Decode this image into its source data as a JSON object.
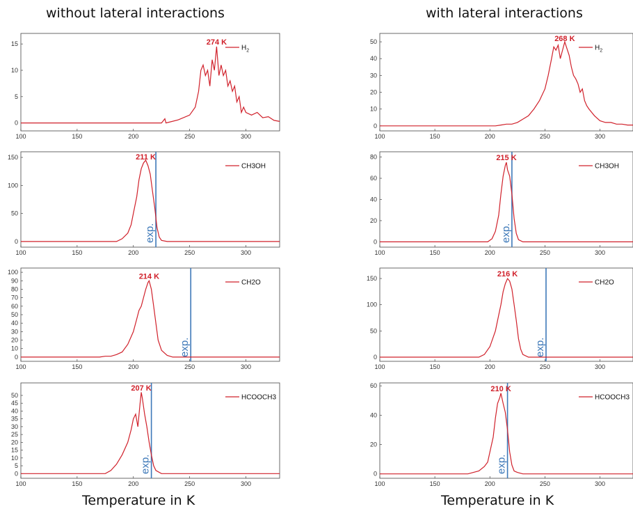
{
  "figure": {
    "left_title": "without lateral interactions",
    "right_title": "with lateral interactions",
    "x_title": "Temperature in K"
  },
  "colors": {
    "series": "#d0202a",
    "exp": "#3d78b8",
    "axis": "#444444"
  },
  "chart_data": [
    {
      "type": "line",
      "id": "wo-h2",
      "legend": "H",
      "legend_sub": "2",
      "peak_label": "274 K",
      "xlim": [
        100,
        330
      ],
      "ylim": [
        -1.5,
        17
      ],
      "xticks": [
        100,
        150,
        200,
        250,
        300
      ],
      "yticks": [
        0,
        5,
        10,
        15
      ],
      "exp_line": null,
      "exp_label": "",
      "x": [
        100,
        225,
        228,
        229,
        240,
        250,
        255,
        258,
        260,
        262,
        264,
        266,
        268,
        270,
        272,
        274,
        276,
        278,
        280,
        282,
        284,
        286,
        288,
        290,
        292,
        294,
        296,
        298,
        300,
        305,
        310,
        315,
        320,
        325,
        330
      ],
      "y": [
        0,
        0,
        0.8,
        0,
        0.6,
        1.5,
        3,
        6,
        10,
        11,
        9,
        10,
        7,
        12,
        10,
        14.5,
        9,
        11,
        9,
        10,
        7,
        8,
        6,
        7,
        4,
        5,
        2,
        3,
        2,
        1.5,
        2,
        1,
        1.2,
        0.5,
        0.3
      ]
    },
    {
      "type": "line",
      "id": "wo-ch3oh",
      "legend": "CH3OH",
      "legend_sub": "",
      "peak_label": "211 K",
      "xlim": [
        100,
        330
      ],
      "ylim": [
        -10,
        160
      ],
      "xticks": [
        100,
        150,
        200,
        250,
        300
      ],
      "yticks": [
        0,
        50,
        100,
        150
      ],
      "exp_line": 220,
      "exp_label": "exp.",
      "x": [
        100,
        185,
        190,
        195,
        198,
        200,
        203,
        205,
        207,
        209,
        211,
        213,
        215,
        217,
        219,
        221,
        223,
        225,
        230,
        330
      ],
      "y": [
        0,
        0,
        5,
        15,
        30,
        50,
        80,
        110,
        130,
        140,
        145,
        135,
        120,
        90,
        60,
        25,
        8,
        2,
        0,
        0
      ]
    },
    {
      "type": "line",
      "id": "wo-ch2o",
      "legend": "CH2O",
      "legend_sub": "",
      "peak_label": "214 K",
      "xlim": [
        100,
        330
      ],
      "ylim": [
        -5,
        105
      ],
      "xticks": [
        100,
        150,
        200,
        250,
        300
      ],
      "yticks": [
        0,
        10,
        20,
        30,
        40,
        50,
        60,
        70,
        80,
        90,
        100
      ],
      "exp_line": 251,
      "exp_label": "exp.",
      "x": [
        100,
        170,
        175,
        180,
        185,
        190,
        195,
        200,
        203,
        205,
        207,
        209,
        211,
        213,
        214,
        216,
        218,
        220,
        222,
        225,
        230,
        235,
        330
      ],
      "y": [
        0,
        0,
        1,
        1,
        3,
        6,
        15,
        30,
        45,
        55,
        60,
        70,
        80,
        88,
        90,
        80,
        60,
        40,
        20,
        8,
        2,
        0,
        0
      ]
    },
    {
      "type": "line",
      "id": "wo-hcooch3",
      "legend": "HCOOCH3",
      "legend_sub": "",
      "peak_label": "207 K",
      "xlim": [
        100,
        330
      ],
      "ylim": [
        -3,
        58
      ],
      "xticks": [
        100,
        150,
        200,
        250,
        300
      ],
      "yticks": [
        0,
        5,
        10,
        15,
        20,
        25,
        30,
        35,
        40,
        45,
        50
      ],
      "exp_line": 216,
      "exp_label": "exp.",
      "x": [
        100,
        175,
        180,
        185,
        190,
        195,
        198,
        200,
        202,
        204,
        206,
        207,
        208,
        210,
        212,
        214,
        216,
        218,
        220,
        225,
        230,
        330
      ],
      "y": [
        0,
        0,
        2,
        6,
        12,
        20,
        28,
        35,
        38,
        30,
        45,
        52,
        48,
        38,
        30,
        20,
        12,
        5,
        2,
        0,
        0,
        0
      ]
    },
    {
      "type": "line",
      "id": "w-h2",
      "legend": "H",
      "legend_sub": "2",
      "peak_label": "268 K",
      "xlim": [
        100,
        330
      ],
      "ylim": [
        -3,
        55
      ],
      "xticks": [
        100,
        150,
        200,
        250,
        300
      ],
      "yticks": [
        0,
        10,
        20,
        30,
        40,
        50
      ],
      "exp_line": null,
      "exp_label": "",
      "x": [
        100,
        205,
        210,
        215,
        220,
        225,
        230,
        235,
        240,
        245,
        250,
        253,
        256,
        258,
        260,
        262,
        264,
        266,
        268,
        270,
        272,
        274,
        276,
        278,
        280,
        282,
        284,
        286,
        288,
        290,
        295,
        300,
        305,
        310,
        315,
        320,
        325,
        330
      ],
      "y": [
        0,
        0,
        0.5,
        1,
        1,
        2,
        4,
        6,
        10,
        15,
        22,
        30,
        40,
        47,
        45,
        48,
        40,
        45,
        50,
        46,
        42,
        35,
        30,
        28,
        25,
        20,
        22,
        15,
        12,
        10,
        6,
        3,
        2,
        2,
        1,
        1,
        0.5,
        0.5
      ]
    },
    {
      "type": "line",
      "id": "w-ch3oh",
      "legend": "CH3OH",
      "legend_sub": "",
      "peak_label": "215 K",
      "xlim": [
        100,
        330
      ],
      "ylim": [
        -5,
        85
      ],
      "xticks": [
        100,
        150,
        200,
        250,
        300
      ],
      "yticks": [
        0,
        20,
        40,
        60,
        80
      ],
      "exp_line": 220,
      "exp_label": "exp.",
      "x": [
        100,
        198,
        202,
        205,
        208,
        210,
        212,
        214,
        215,
        216,
        218,
        220,
        222,
        224,
        226,
        230,
        330
      ],
      "y": [
        0,
        0,
        3,
        10,
        25,
        45,
        62,
        72,
        75,
        68,
        62,
        45,
        22,
        8,
        2,
        0,
        0
      ]
    },
    {
      "type": "line",
      "id": "w-ch2o",
      "legend": "CH2O",
      "legend_sub": "",
      "peak_label": "216 K",
      "xlim": [
        100,
        330
      ],
      "ylim": [
        -8,
        170
      ],
      "xticks": [
        100,
        150,
        200,
        250,
        300
      ],
      "yticks": [
        0,
        50,
        100,
        150
      ],
      "exp_line": 251,
      "exp_label": "exp.",
      "x": [
        100,
        190,
        195,
        200,
        205,
        208,
        210,
        212,
        214,
        216,
        218,
        220,
        222,
        224,
        226,
        228,
        230,
        235,
        330
      ],
      "y": [
        0,
        0,
        5,
        20,
        50,
        80,
        100,
        125,
        140,
        150,
        145,
        130,
        100,
        70,
        35,
        15,
        5,
        0,
        0
      ]
    },
    {
      "type": "line",
      "id": "w-hcooch3",
      "legend": "HCOOCH3",
      "legend_sub": "",
      "peak_label": "210 K",
      "xlim": [
        100,
        330
      ],
      "ylim": [
        -3,
        62
      ],
      "xticks": [
        100,
        150,
        200,
        250,
        300
      ],
      "yticks": [
        0,
        20,
        40,
        60
      ],
      "exp_line": 216,
      "exp_label": "exp.",
      "x": [
        100,
        180,
        185,
        190,
        195,
        198,
        200,
        203,
        205,
        207,
        209,
        210,
        212,
        214,
        216,
        218,
        220,
        222,
        225,
        230,
        330
      ],
      "y": [
        0,
        0,
        1,
        2,
        5,
        8,
        15,
        25,
        38,
        48,
        52,
        55,
        48,
        42,
        30,
        15,
        6,
        2,
        1,
        0,
        0
      ]
    }
  ]
}
